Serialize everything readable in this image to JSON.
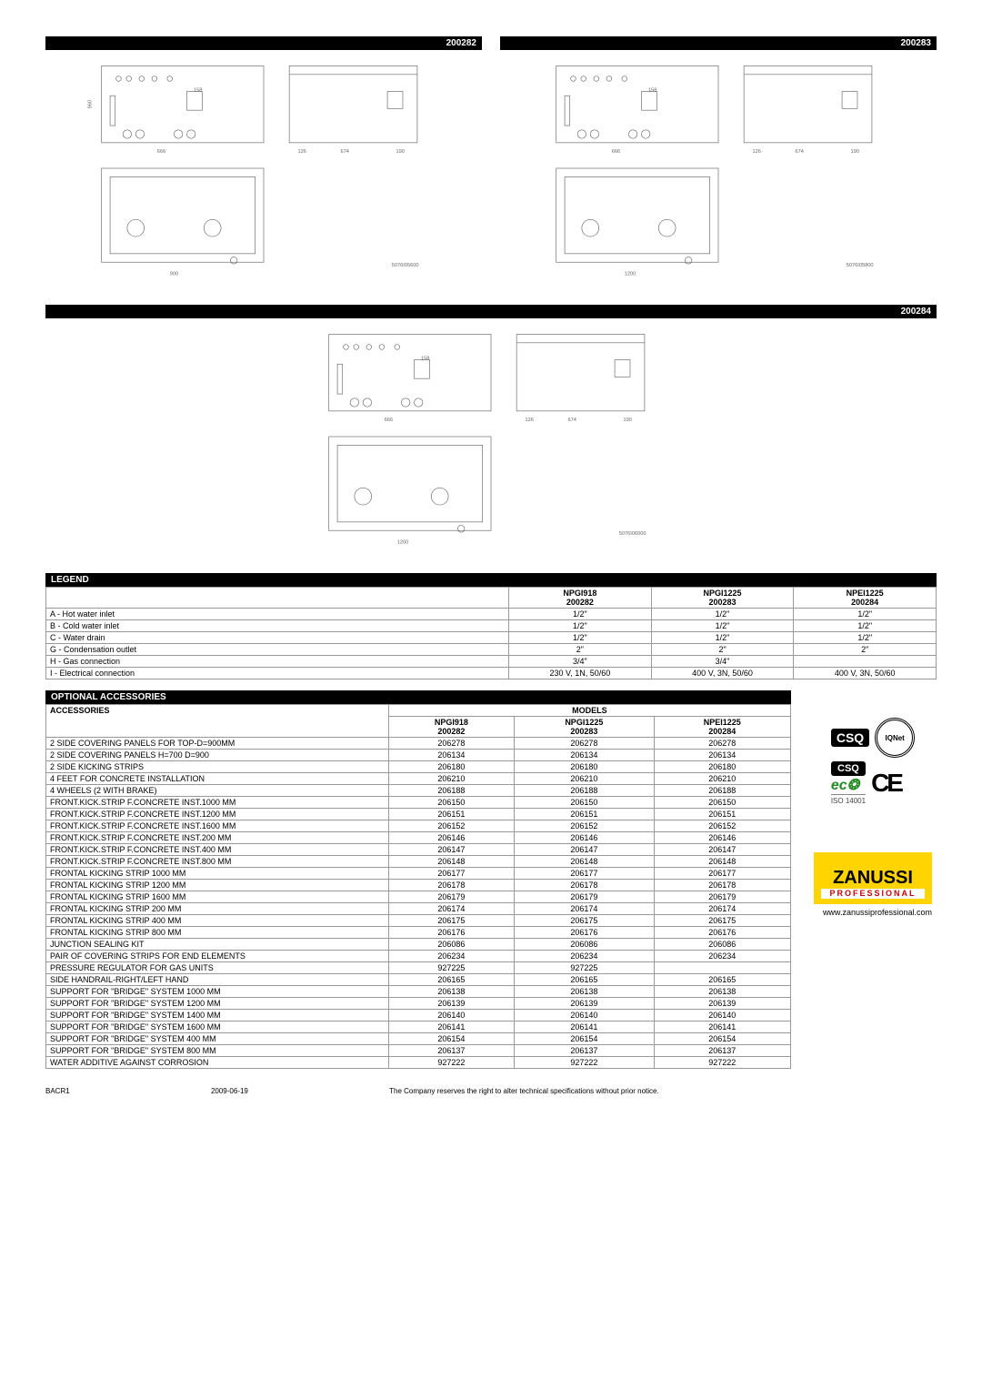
{
  "diagrams": [
    {
      "code": "200282",
      "width_label": "900"
    },
    {
      "code": "200283",
      "width_label": "1200"
    },
    {
      "code": "200284",
      "width_label": "1200"
    }
  ],
  "diagram_dims": {
    "front_labels": [
      "158",
      "666",
      "126",
      "674",
      "190",
      "960",
      "298",
      "70",
      "335",
      "200",
      "500"
    ],
    "side_labels": [
      "770",
      "476",
      "860",
      "770",
      "900",
      "150",
      "140"
    ]
  },
  "diagram_refs": [
    "5076I05600",
    "5076I05800",
    "5076I06000"
  ],
  "legend": {
    "title": "LEGEND",
    "columns": [
      {
        "model": "NPGI918",
        "code": "200282"
      },
      {
        "model": "NPGI1225",
        "code": "200283"
      },
      {
        "model": "NPEI1225",
        "code": "200284"
      }
    ],
    "rows": [
      {
        "label": "A  - Hot water inlet",
        "v": [
          "1/2\"",
          "1/2\"",
          "1/2\""
        ]
      },
      {
        "label": "B  - Cold water inlet",
        "v": [
          "1/2\"",
          "1/2\"",
          "1/2\""
        ]
      },
      {
        "label": "C  - Water drain",
        "v": [
          "1/2\"",
          "1/2\"",
          "1/2\""
        ]
      },
      {
        "label": "G  - Condensation outlet",
        "v": [
          "2\"",
          "2\"",
          "2\""
        ]
      },
      {
        "label": "H  - Gas connection",
        "v": [
          "3/4\"",
          "3/4\"",
          ""
        ]
      },
      {
        "label": "I  - Electrical connection",
        "v": [
          "230 V, 1N, 50/60",
          "400 V, 3N, 50/60",
          "400 V, 3N, 50/60"
        ]
      }
    ]
  },
  "accessories": {
    "title": "OPTIONAL ACCESSORIES",
    "header_left": "ACCESSORIES",
    "header_models": "MODELS",
    "columns": [
      {
        "model": "NPGI918",
        "code": "200282"
      },
      {
        "model": "NPGI1225",
        "code": "200283"
      },
      {
        "model": "NPEI1225",
        "code": "200284"
      }
    ],
    "rows": [
      {
        "label": "2 SIDE COVERING PANELS FOR TOP-D=900MM",
        "v": [
          "206278",
          "206278",
          "206278"
        ]
      },
      {
        "label": "2 SIDE COVERING PANELS H=700 D=900",
        "v": [
          "206134",
          "206134",
          "206134"
        ]
      },
      {
        "label": "2 SIDE KICKING STRIPS",
        "v": [
          "206180",
          "206180",
          "206180"
        ]
      },
      {
        "label": "4 FEET FOR CONCRETE INSTALLATION",
        "v": [
          "206210",
          "206210",
          "206210"
        ]
      },
      {
        "label": "4 WHEELS (2 WITH BRAKE)",
        "v": [
          "206188",
          "206188",
          "206188"
        ]
      },
      {
        "label": "FRONT.KICK.STRIP F.CONCRETE INST.1000 MM",
        "v": [
          "206150",
          "206150",
          "206150"
        ]
      },
      {
        "label": "FRONT.KICK.STRIP F.CONCRETE INST.1200 MM",
        "v": [
          "206151",
          "206151",
          "206151"
        ]
      },
      {
        "label": "FRONT.KICK.STRIP F.CONCRETE INST.1600 MM",
        "v": [
          "206152",
          "206152",
          "206152"
        ]
      },
      {
        "label": "FRONT.KICK.STRIP F.CONCRETE INST.200 MM",
        "v": [
          "206146",
          "206146",
          "206146"
        ]
      },
      {
        "label": "FRONT.KICK.STRIP F.CONCRETE INST.400 MM",
        "v": [
          "206147",
          "206147",
          "206147"
        ]
      },
      {
        "label": "FRONT.KICK.STRIP F.CONCRETE INST.800 MM",
        "v": [
          "206148",
          "206148",
          "206148"
        ]
      },
      {
        "label": "FRONTAL KICKING STRIP 1000 MM",
        "v": [
          "206177",
          "206177",
          "206177"
        ]
      },
      {
        "label": "FRONTAL KICKING STRIP 1200 MM",
        "v": [
          "206178",
          "206178",
          "206178"
        ]
      },
      {
        "label": "FRONTAL KICKING STRIP 1600 MM",
        "v": [
          "206179",
          "206179",
          "206179"
        ]
      },
      {
        "label": "FRONTAL KICKING STRIP 200 MM",
        "v": [
          "206174",
          "206174",
          "206174"
        ]
      },
      {
        "label": "FRONTAL KICKING STRIP 400 MM",
        "v": [
          "206175",
          "206175",
          "206175"
        ]
      },
      {
        "label": "FRONTAL KICKING STRIP 800 MM",
        "v": [
          "206176",
          "206176",
          "206176"
        ]
      },
      {
        "label": "JUNCTION SEALING KIT",
        "v": [
          "206086",
          "206086",
          "206086"
        ]
      },
      {
        "label": "PAIR OF COVERING STRIPS FOR END ELEMENTS",
        "v": [
          "206234",
          "206234",
          "206234"
        ]
      },
      {
        "label": "PRESSURE REGULATOR FOR GAS UNITS",
        "v": [
          "927225",
          "927225",
          ""
        ]
      },
      {
        "label": "SIDE HANDRAIL-RIGHT/LEFT HAND",
        "v": [
          "206165",
          "206165",
          "206165"
        ]
      },
      {
        "label": "SUPPORT FOR \"BRIDGE\" SYSTEM 1000 MM",
        "v": [
          "206138",
          "206138",
          "206138"
        ]
      },
      {
        "label": "SUPPORT FOR \"BRIDGE\" SYSTEM 1200 MM",
        "v": [
          "206139",
          "206139",
          "206139"
        ]
      },
      {
        "label": "SUPPORT FOR \"BRIDGE\" SYSTEM 1400 MM",
        "v": [
          "206140",
          "206140",
          "206140"
        ]
      },
      {
        "label": "SUPPORT FOR \"BRIDGE\" SYSTEM 1600 MM",
        "v": [
          "206141",
          "206141",
          "206141"
        ]
      },
      {
        "label": "SUPPORT FOR \"BRIDGE\" SYSTEM 400 MM",
        "v": [
          "206154",
          "206154",
          "206154"
        ]
      },
      {
        "label": "SUPPORT FOR \"BRIDGE\" SYSTEM 800 MM",
        "v": [
          "206137",
          "206137",
          "206137"
        ]
      },
      {
        "label": "WATER ADDITIVE AGAINST CORROSION",
        "v": [
          "927222",
          "927222",
          "927222"
        ]
      }
    ]
  },
  "certs": {
    "csq": "CSQ",
    "iqnet": "IQNet",
    "eco": "ec❂",
    "ce": "CE",
    "iso": "ISO 14001"
  },
  "brand": {
    "name": "ZANUSSI",
    "subtitle": "PROFESSIONAL",
    "website": "www.zanussiprofessional.com"
  },
  "footer": {
    "left": "BACR1",
    "date": "2009-06-19",
    "disclaimer": "The Company reserves the right to alter technical specifications without prior notice."
  }
}
